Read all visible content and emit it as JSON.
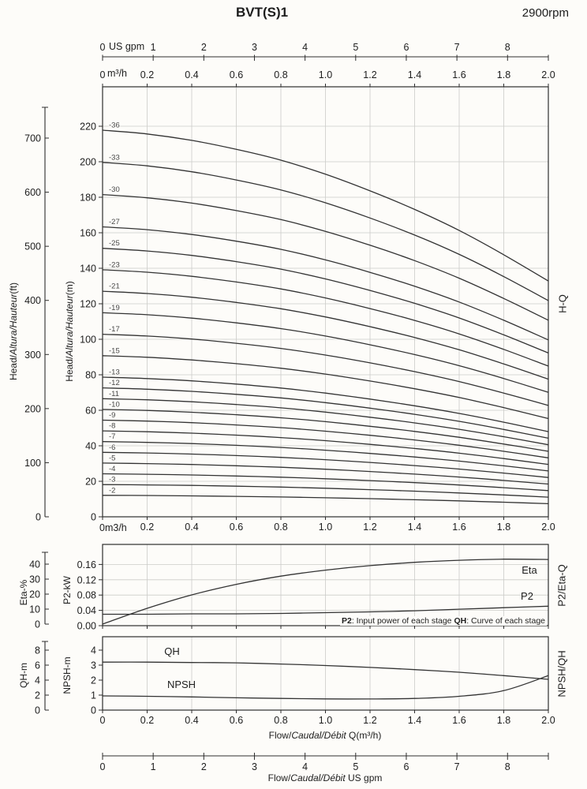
{
  "title": "BVT(S)1",
  "rpm": "2900rpm",
  "colors": {
    "ink": "#1d1d1d",
    "curve": "#333333",
    "grid": "#cbcbc8",
    "background": "#fdfcf9"
  },
  "top_axis_gpm": {
    "unit": "US gpm",
    "ticks": [
      "0",
      "1",
      "2",
      "3",
      "4",
      "5",
      "6",
      "7",
      "8"
    ]
  },
  "top_axis_m3h": {
    "unit": "m³/h",
    "ticks": [
      "0",
      "0.2",
      "0.4",
      "0.6",
      "0.8",
      "1.0",
      "1.2",
      "1.4",
      "1.6",
      "1.8",
      "2.0"
    ]
  },
  "bottom_axis_main": {
    "zero_label": "0m3/h",
    "ticks": [
      "0.2",
      "0.4",
      "0.6",
      "0.8",
      "1.0",
      "1.2",
      "1.4",
      "1.6",
      "1.8",
      "2.0"
    ]
  },
  "left_labels": {
    "head_ft": {
      "pre": "Head/",
      "italic": "Altura/Hauteur",
      "post": "(ft)"
    },
    "head_m": {
      "pre": "Head/",
      "italic": "Altura/Hauteur",
      "post": "(m)"
    },
    "eta": "Eta-%",
    "p2": "P2-kW",
    "qh": "QH-m",
    "npsh": "NPSH-m"
  },
  "right_labels": {
    "hq": "H-Q",
    "p2eta": "P2/Eta-Q",
    "npshqh": "NPSH/QH"
  },
  "note": {
    "b1": "P2",
    "t1": ": Input power of each stage ",
    "b2": "QH",
    "t2": ": Curve of each stage"
  },
  "npsh_x_axis": {
    "ticks": [
      "0",
      "0.2",
      "0.4",
      "0.6",
      "0.8",
      "1.0",
      "1.2",
      "1.4",
      "1.6",
      "1.8",
      "2.0"
    ],
    "label": {
      "pre": "Flow/",
      "italic": "Caudal/Débit",
      "post": " Q(m³/h)"
    }
  },
  "bottom_axis_gpm": {
    "ticks": [
      "0",
      "1",
      "2",
      "3",
      "4",
      "5",
      "6",
      "7",
      "8"
    ],
    "label": {
      "pre": "Flow/",
      "italic": "Caudal/Débit",
      "post": "  US gpm"
    }
  },
  "chart_data": [
    {
      "type": "line",
      "name": "H-Q",
      "xlabel": "Flow Q (m³/h)",
      "xlim": [
        0,
        2.0
      ],
      "ylim_m": [
        0,
        242
      ],
      "y_ticks_m": [
        0,
        20,
        40,
        60,
        80,
        100,
        120,
        140,
        160,
        180,
        200,
        220
      ],
      "y_ticks_ft": [
        0,
        100,
        200,
        300,
        400,
        500,
        600,
        700
      ],
      "stages": [
        36,
        33,
        30,
        27,
        25,
        23,
        21,
        19,
        17,
        15,
        13,
        12,
        11,
        10,
        9,
        8,
        7,
        6,
        5,
        4,
        3,
        2
      ],
      "stage_labels": [
        "-36",
        "-33",
        "-30",
        "-27",
        "-25",
        "-23",
        "-21",
        "-19",
        "-17",
        "-15",
        "-13",
        "-12",
        "-11",
        "-10",
        "-9",
        "-8",
        "-7",
        "-6",
        "-5",
        "-4",
        "-3",
        "-2"
      ],
      "per_stage_curve": {
        "q": [
          0,
          0.2,
          0.4,
          0.6,
          0.8,
          1.0,
          1.2,
          1.4,
          1.6,
          1.8,
          2.0
        ],
        "head_m": [
          6.05,
          5.99,
          5.89,
          5.75,
          5.58,
          5.36,
          5.1,
          4.81,
          4.48,
          4.1,
          3.69
        ]
      }
    },
    {
      "type": "line",
      "name": "P2/Eta-Q",
      "eta_ticks": [
        0,
        10,
        20,
        30,
        40
      ],
      "p2_ticks": [
        "0.00",
        "0.04",
        "0.08",
        "0.12",
        "0.16"
      ],
      "series": [
        {
          "name": "Eta",
          "unit": "%",
          "x": [
            0,
            0.2,
            0.4,
            0.6,
            0.8,
            1.0,
            1.2,
            1.4,
            1.6,
            1.8,
            2.0
          ],
          "y": [
            0,
            10.5,
            19.5,
            26.5,
            32,
            36,
            39,
            41.2,
            42.6,
            43.3,
            43.1
          ]
        },
        {
          "name": "P2",
          "unit": "kW",
          "x": [
            0,
            0.2,
            0.4,
            0.6,
            0.8,
            1.0,
            1.2,
            1.4,
            1.6,
            1.8,
            2.0
          ],
          "y": [
            0.03,
            0.03,
            0.031,
            0.031,
            0.032,
            0.034,
            0.036,
            0.039,
            0.043,
            0.047,
            0.051
          ]
        }
      ]
    },
    {
      "type": "line",
      "name": "NPSH/QH",
      "qh_ticks": [
        0,
        2,
        4,
        6,
        8
      ],
      "npsh_ticks": [
        0,
        1,
        2,
        3,
        4
      ],
      "series": [
        {
          "name": "QH",
          "unit": "m",
          "x": [
            0,
            0.2,
            0.4,
            0.6,
            0.8,
            1.0,
            1.2,
            1.4,
            1.6,
            1.8,
            2.0
          ],
          "y": [
            6.4,
            6.4,
            6.35,
            6.3,
            6.15,
            5.95,
            5.7,
            5.4,
            5.05,
            4.6,
            4.1
          ]
        },
        {
          "name": "NPSH",
          "unit": "m",
          "x": [
            0,
            0.2,
            0.4,
            0.6,
            0.8,
            1.0,
            1.2,
            1.4,
            1.6,
            1.8,
            2.0
          ],
          "y": [
            0.95,
            0.92,
            0.88,
            0.82,
            0.78,
            0.75,
            0.74,
            0.78,
            0.92,
            1.3,
            2.3
          ]
        }
      ]
    }
  ]
}
